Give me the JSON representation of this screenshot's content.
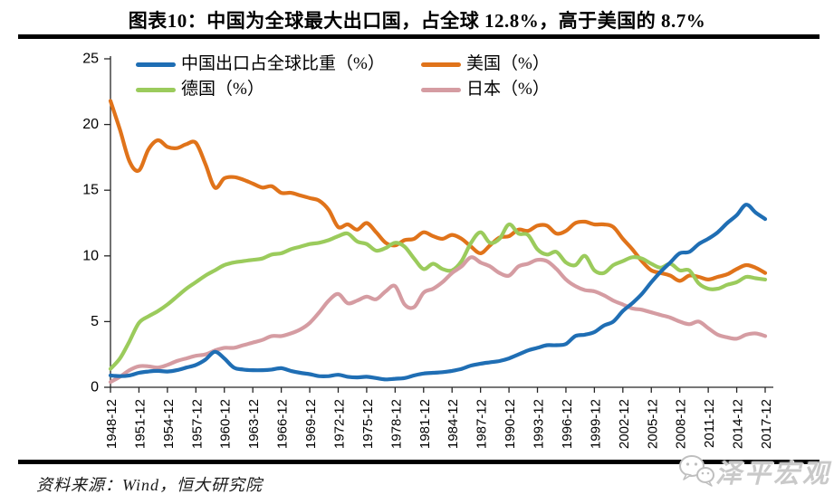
{
  "title": "图表10：中国为全球最大出口国，占全球 12.8%，高于美国的 8.7%",
  "source": "资料来源：Wind，恒大研究院",
  "watermark": {
    "label": "泽平宏观",
    "icon": "wechat-icon"
  },
  "chart_data": {
    "type": "line",
    "title": "",
    "xlabel": "",
    "ylabel": "",
    "ylim": [
      0,
      25
    ],
    "y_ticks": [
      0,
      5,
      10,
      15,
      20,
      25
    ],
    "grid": false,
    "legend_position": "top",
    "x_tick_labels": [
      "1948-12",
      "1951-12",
      "1954-12",
      "1957-12",
      "1960-12",
      "1963-12",
      "1966-12",
      "1969-12",
      "1972-12",
      "1975-12",
      "1978-12",
      "1981-12",
      "1984-12",
      "1987-12",
      "1990-12",
      "1993-12",
      "1996-12",
      "1999-12",
      "2002-12",
      "2005-12",
      "2008-12",
      "2011-12",
      "2014-12",
      "2017-12"
    ],
    "years": [
      1948,
      1949,
      1950,
      1951,
      1952,
      1953,
      1954,
      1955,
      1956,
      1957,
      1958,
      1959,
      1960,
      1961,
      1962,
      1963,
      1964,
      1965,
      1966,
      1967,
      1968,
      1969,
      1970,
      1971,
      1972,
      1973,
      1974,
      1975,
      1976,
      1977,
      1978,
      1979,
      1980,
      1981,
      1982,
      1983,
      1984,
      1985,
      1986,
      1987,
      1988,
      1989,
      1990,
      1991,
      1992,
      1993,
      1994,
      1995,
      1996,
      1997,
      1998,
      1999,
      2000,
      2001,
      2002,
      2003,
      2004,
      2005,
      2006,
      2007,
      2008,
      2009,
      2010,
      2011,
      2012,
      2013,
      2014,
      2015,
      2016,
      2017
    ],
    "series": [
      {
        "name": "中国出口占全球比重（%）",
        "color": "#1F6EB4",
        "values": [
          0.9,
          0.85,
          0.9,
          1.1,
          1.2,
          1.25,
          1.2,
          1.3,
          1.5,
          1.7,
          2.1,
          2.7,
          2.2,
          1.5,
          1.35,
          1.3,
          1.3,
          1.35,
          1.45,
          1.25,
          1.1,
          1.0,
          0.85,
          0.85,
          0.95,
          0.8,
          0.75,
          0.8,
          0.7,
          0.6,
          0.65,
          0.7,
          0.9,
          1.05,
          1.1,
          1.15,
          1.25,
          1.4,
          1.65,
          1.8,
          1.9,
          2.0,
          2.2,
          2.5,
          2.8,
          3.0,
          3.2,
          3.2,
          3.3,
          3.9,
          4.0,
          4.2,
          4.7,
          5.0,
          5.8,
          6.4,
          7.1,
          8.0,
          8.8,
          9.5,
          10.2,
          10.3,
          10.9,
          11.3,
          11.8,
          12.5,
          13.1,
          13.9,
          13.3,
          12.8
        ]
      },
      {
        "name": "美国（%）",
        "color": "#E0731A",
        "values": [
          21.8,
          19.6,
          17.2,
          16.5,
          18.1,
          18.8,
          18.3,
          18.2,
          18.5,
          18.6,
          17.0,
          15.2,
          15.9,
          16.0,
          15.8,
          15.5,
          15.2,
          15.3,
          14.8,
          14.8,
          14.6,
          14.4,
          14.2,
          13.5,
          12.2,
          12.4,
          12.0,
          12.5,
          11.8,
          11.0,
          10.8,
          11.2,
          11.3,
          11.8,
          11.5,
          11.3,
          11.6,
          11.3,
          10.7,
          10.2,
          10.8,
          11.4,
          11.5,
          12.0,
          11.9,
          12.3,
          12.3,
          11.7,
          11.9,
          12.5,
          12.6,
          12.4,
          12.4,
          12.2,
          11.3,
          10.5,
          9.6,
          8.9,
          8.7,
          8.5,
          8.1,
          8.5,
          8.4,
          8.2,
          8.4,
          8.6,
          9.0,
          9.3,
          9.1,
          8.7
        ]
      },
      {
        "name": "德国（%）",
        "color": "#9BCB5C",
        "values": [
          1.4,
          2.2,
          3.5,
          4.9,
          5.4,
          5.8,
          6.3,
          6.9,
          7.5,
          8.0,
          8.5,
          8.9,
          9.3,
          9.5,
          9.6,
          9.7,
          9.8,
          10.1,
          10.2,
          10.5,
          10.7,
          10.9,
          11.0,
          11.2,
          11.5,
          11.7,
          11.1,
          10.9,
          10.4,
          10.6,
          11.0,
          10.7,
          9.8,
          9.0,
          9.4,
          9.0,
          8.9,
          9.6,
          11.0,
          11.8,
          11.0,
          11.3,
          12.4,
          11.7,
          11.6,
          10.5,
          10.1,
          10.3,
          9.5,
          9.3,
          10.0,
          8.9,
          8.7,
          9.3,
          9.6,
          9.9,
          9.8,
          9.4,
          9.1,
          9.4,
          8.9,
          8.9,
          7.9,
          7.5,
          7.5,
          7.8,
          8.0,
          8.4,
          8.3,
          8.2
        ]
      },
      {
        "name": "日本（%）",
        "color": "#D59CA2",
        "values": [
          0.4,
          0.8,
          1.3,
          1.6,
          1.6,
          1.5,
          1.7,
          2.0,
          2.2,
          2.4,
          2.5,
          2.8,
          3.0,
          3.0,
          3.2,
          3.4,
          3.6,
          3.9,
          3.9,
          4.1,
          4.4,
          4.9,
          5.7,
          6.6,
          7.1,
          6.4,
          6.6,
          6.9,
          6.7,
          7.3,
          7.7,
          6.3,
          6.1,
          7.2,
          7.5,
          8.0,
          8.7,
          9.2,
          9.9,
          9.5,
          9.2,
          8.7,
          8.5,
          9.2,
          9.4,
          9.7,
          9.6,
          9.0,
          8.2,
          7.7,
          7.4,
          7.3,
          7.0,
          6.6,
          6.3,
          6.0,
          5.9,
          5.7,
          5.5,
          5.3,
          5.0,
          4.8,
          5.0,
          4.5,
          4.0,
          3.8,
          3.7,
          4.0,
          4.1,
          3.9
        ]
      }
    ]
  }
}
